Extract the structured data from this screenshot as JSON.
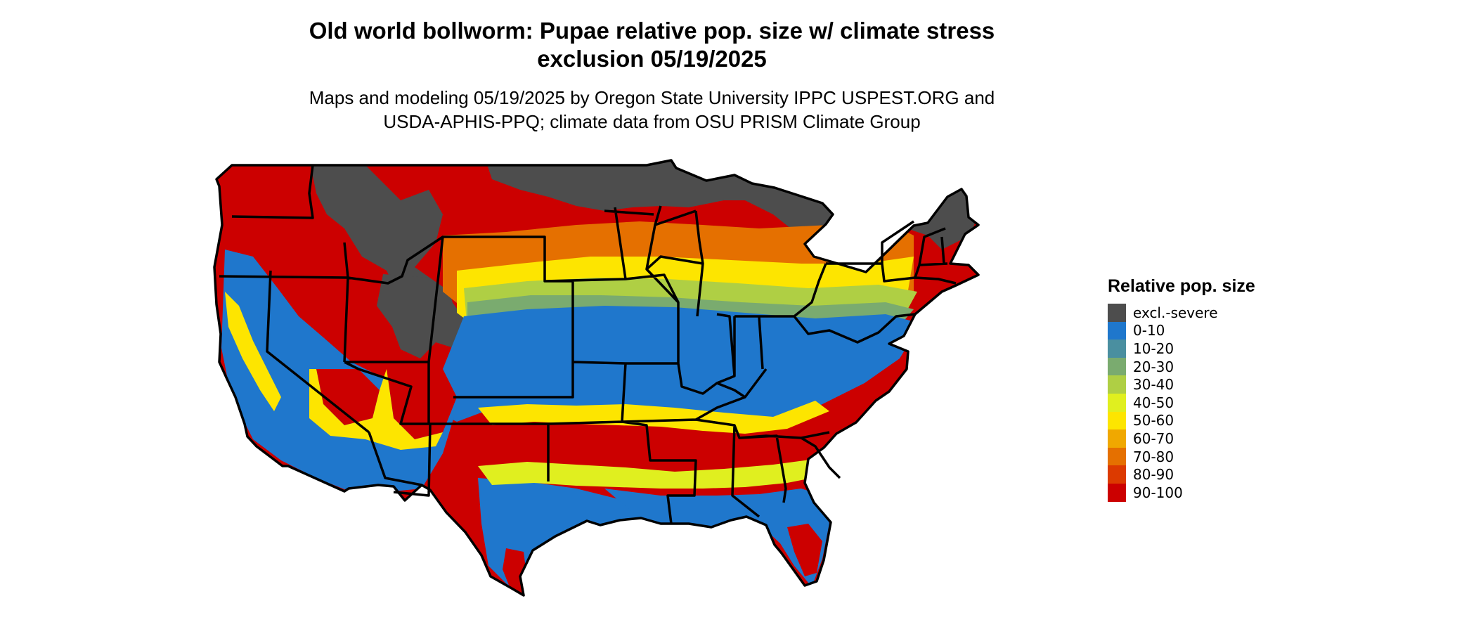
{
  "title": {
    "line1": "Old world bollworm: Pupae relative pop. size w/ climate stress",
    "line2": "exclusion 05/19/2025"
  },
  "subtitle": {
    "line1": "Maps and modeling 05/19/2025 by Oregon State University IPPC USPEST.ORG and",
    "line2": "USDA-APHIS-PPQ; climate data from OSU PRISM Climate Group"
  },
  "legend": {
    "title": "Relative pop. size",
    "items": [
      {
        "label": "excl.-severe",
        "color": "#4d4d4d"
      },
      {
        "label": "0-10",
        "color": "#1f77cc"
      },
      {
        "label": "10-20",
        "color": "#4a8fa0"
      },
      {
        "label": "20-30",
        "color": "#7aab6f"
      },
      {
        "label": "30-40",
        "color": "#afcf44"
      },
      {
        "label": "40-50",
        "color": "#e0ef1f"
      },
      {
        "label": "50-60",
        "color": "#fde500"
      },
      {
        "label": "60-70",
        "color": "#f0a800"
      },
      {
        "label": "70-80",
        "color": "#e57000"
      },
      {
        "label": "80-90",
        "color": "#dc3a00"
      },
      {
        "label": "90-100",
        "color": "#cc0000"
      }
    ]
  },
  "colors": {
    "excl": "#4d4d4d",
    "c0": "#1f77cc",
    "c10": "#4a8fa0",
    "c20": "#7aab6f",
    "c30": "#afcf44",
    "c40": "#e0ef1f",
    "c50": "#fde500",
    "c60": "#f0a800",
    "c70": "#e57000",
    "c80": "#dc3a00",
    "c90": "#cc0000",
    "border": "#000000"
  }
}
